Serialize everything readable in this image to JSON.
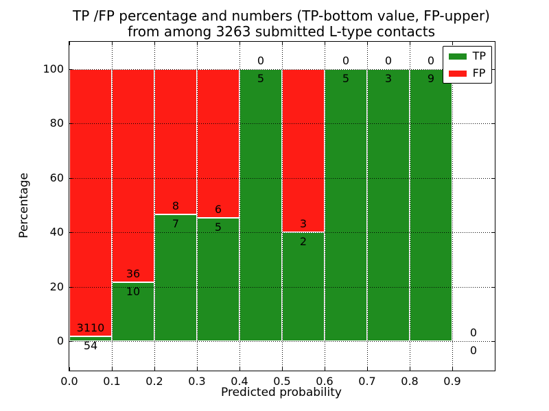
{
  "title_line1": "TP /FP percentage and numbers (TP-bottom value, FP-upper)",
  "title_line2": "from among 3263 submitted L-type contacts",
  "colors": {
    "tp": "#1f8c1f",
    "fp": "#fe1c15",
    "axis": "#000000",
    "background": "#ffffff"
  },
  "chart_data": {
    "type": "bar",
    "stacked": true,
    "title": "TP /FP percentage and numbers (TP-bottom value, FP-upper) from among 3263 submitted L-type contacts",
    "xlabel": "Predicted probability",
    "ylabel": "Percentage",
    "xlim": [
      0.0,
      1.0
    ],
    "ylim": [
      -11,
      111
    ],
    "grid": "dotted black, drawn above bars",
    "x_ticks": [
      "0.0",
      "0.1",
      "0.2",
      "0.3",
      "0.4",
      "0.5",
      "0.6",
      "0.7",
      "0.8",
      "0.9"
    ],
    "y_ticks": [
      0,
      20,
      40,
      60,
      80,
      100
    ],
    "total_contacts": 3263,
    "legend": {
      "position": "upper right",
      "entries": [
        {
          "label": "TP",
          "color": "#1f8c1f"
        },
        {
          "label": "FP",
          "color": "#fe1c15"
        }
      ]
    },
    "bins": [
      {
        "x_range": [
          0.0,
          0.1
        ],
        "tp": 54,
        "fp": 3110,
        "tp_pct": 1.7
      },
      {
        "x_range": [
          0.1,
          0.2
        ],
        "tp": 10,
        "fp": 36,
        "tp_pct": 21.7
      },
      {
        "x_range": [
          0.2,
          0.3
        ],
        "tp": 7,
        "fp": 8,
        "tp_pct": 46.7
      },
      {
        "x_range": [
          0.3,
          0.4
        ],
        "tp": 5,
        "fp": 6,
        "tp_pct": 45.5
      },
      {
        "x_range": [
          0.4,
          0.5
        ],
        "tp": 5,
        "fp": 0,
        "tp_pct": 100
      },
      {
        "x_range": [
          0.5,
          0.6
        ],
        "tp": 2,
        "fp": 3,
        "tp_pct": 40
      },
      {
        "x_range": [
          0.6,
          0.7
        ],
        "tp": 5,
        "fp": 0,
        "tp_pct": 100
      },
      {
        "x_range": [
          0.7,
          0.8
        ],
        "tp": 3,
        "fp": 0,
        "tp_pct": 100
      },
      {
        "x_range": [
          0.8,
          0.9
        ],
        "tp": 9,
        "fp": 0,
        "tp_pct": 100
      },
      {
        "x_range": [
          0.9,
          1.0
        ],
        "tp": 0,
        "fp": 0,
        "tp_pct": null
      }
    ]
  }
}
